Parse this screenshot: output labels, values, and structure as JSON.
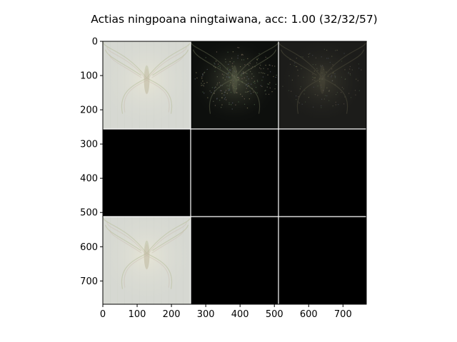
{
  "chart_data": {
    "type": "image-grid",
    "title": "Actias ningpoana ningtaiwana, acc: 1.00 (32/32/57)",
    "xlabel": "",
    "ylabel": "",
    "image_size": [
      768,
      768
    ],
    "xlim": [
      0,
      768
    ],
    "ylim": [
      768,
      0
    ],
    "grid_rows": 3,
    "grid_cols": 3,
    "tile_size": 256,
    "x_ticks": [
      0,
      100,
      200,
      300,
      400,
      500,
      600,
      700
    ],
    "y_ticks": [
      0,
      100,
      200,
      300,
      400,
      500,
      600,
      700
    ],
    "tiles": [
      {
        "row": 0,
        "col": 0,
        "content": "butterfly-light"
      },
      {
        "row": 0,
        "col": 1,
        "content": "butterfly-dark-noisy"
      },
      {
        "row": 0,
        "col": 2,
        "content": "butterfly-dark-faint"
      },
      {
        "row": 1,
        "col": 0,
        "content": "black"
      },
      {
        "row": 1,
        "col": 1,
        "content": "black"
      },
      {
        "row": 1,
        "col": 2,
        "content": "black"
      },
      {
        "row": 2,
        "col": 0,
        "content": "butterfly-light"
      },
      {
        "row": 2,
        "col": 1,
        "content": "black"
      },
      {
        "row": 2,
        "col": 2,
        "content": "black"
      }
    ],
    "separator_color": "#ffffff",
    "colors": {
      "light_bg": "#d6d8d2",
      "dark_bg": "#0d0f0d",
      "faint_bg": "#1c1c1a"
    }
  }
}
